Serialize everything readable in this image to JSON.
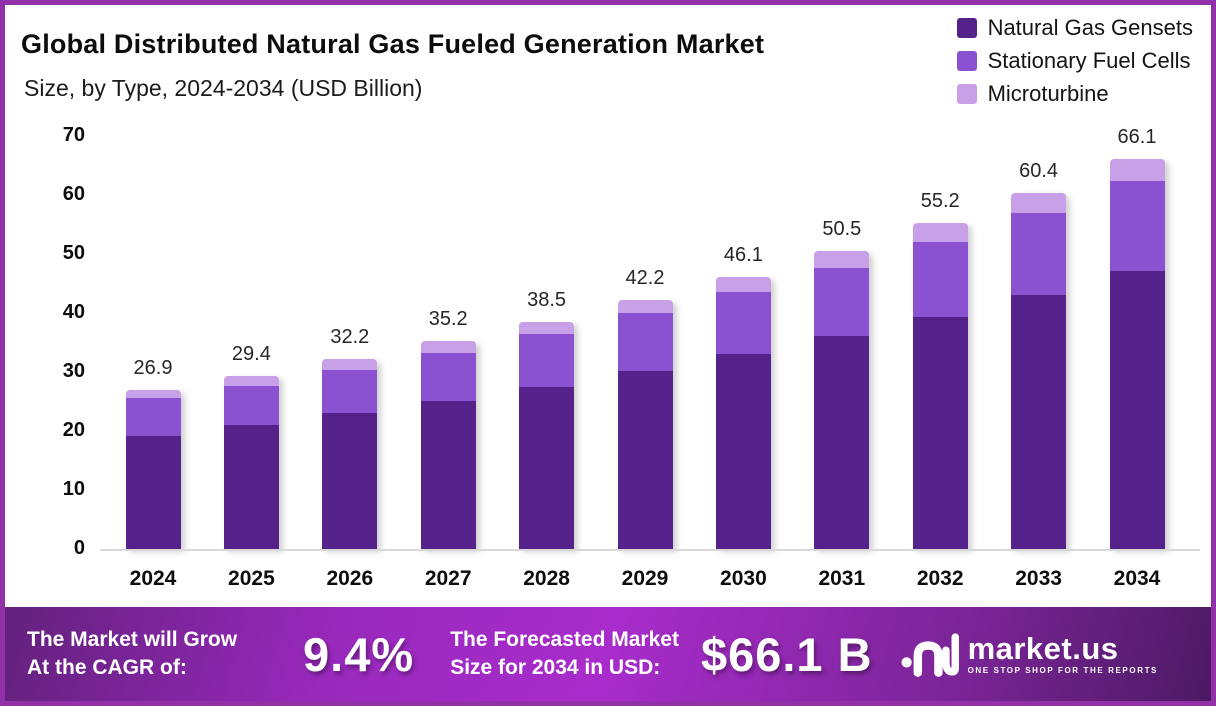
{
  "header": {
    "title": "Global Distributed Natural Gas Fueled Generation Market",
    "subtitle": "Size, by Type, 2024-2034 (USD Billion)"
  },
  "chart_data": {
    "type": "bar",
    "stacked": true,
    "title": "Global Distributed Natural Gas Fueled Generation Market Size, by Type, 2024-2034 (USD Billion)",
    "categories": [
      "2024",
      "2025",
      "2026",
      "2027",
      "2028",
      "2029",
      "2030",
      "2031",
      "2032",
      "2033",
      "2034"
    ],
    "series": [
      {
        "name": "Natural Gas Gensets",
        "color": "#55228b",
        "values": [
          19.2,
          21.0,
          23.0,
          25.1,
          27.4,
          30.2,
          33.0,
          36.1,
          39.4,
          43.1,
          47.2
        ]
      },
      {
        "name": "Stationary Fuel Cells",
        "color": "#8a52d1",
        "values": [
          6.4,
          6.7,
          7.4,
          8.2,
          9.0,
          9.8,
          10.6,
          11.5,
          12.6,
          13.9,
          15.1
        ]
      },
      {
        "name": "Microturbine",
        "color": "#c7a0e8",
        "values": [
          1.3,
          1.7,
          1.8,
          1.9,
          2.1,
          2.2,
          2.5,
          2.9,
          3.2,
          3.4,
          3.8
        ]
      }
    ],
    "totals": [
      "26.9",
      "29.4",
      "32.2",
      "35.2",
      "38.5",
      "42.2",
      "46.1",
      "50.5",
      "55.2",
      "60.4",
      "66.1"
    ],
    "ylim": [
      0,
      70
    ],
    "yticks": [
      "0",
      "10",
      "20",
      "30",
      "40",
      "50",
      "60",
      "70"
    ],
    "grid": false,
    "legend_position": "top-right",
    "xlabel": "",
    "ylabel": ""
  },
  "legend": [
    {
      "label": "Natural Gas Gensets"
    },
    {
      "label": "Stationary Fuel Cells"
    },
    {
      "label": "Microturbine"
    }
  ],
  "footer": {
    "cagr_label": "The Market will Grow\nAt the CAGR of:",
    "cagr_value": "9.4%",
    "forecast_label": "The Forecasted Market\nSize for 2034 in USD:",
    "forecast_value": "$66.1 B",
    "logo_name": "market.us",
    "logo_tagline": "ONE STOP SHOP FOR THE REPORTS"
  },
  "colors": {
    "border": "#9230a8",
    "banner_center": "#a82ccb",
    "banner_edge": "#4c1a63",
    "baseline": "#d8d8d8"
  }
}
